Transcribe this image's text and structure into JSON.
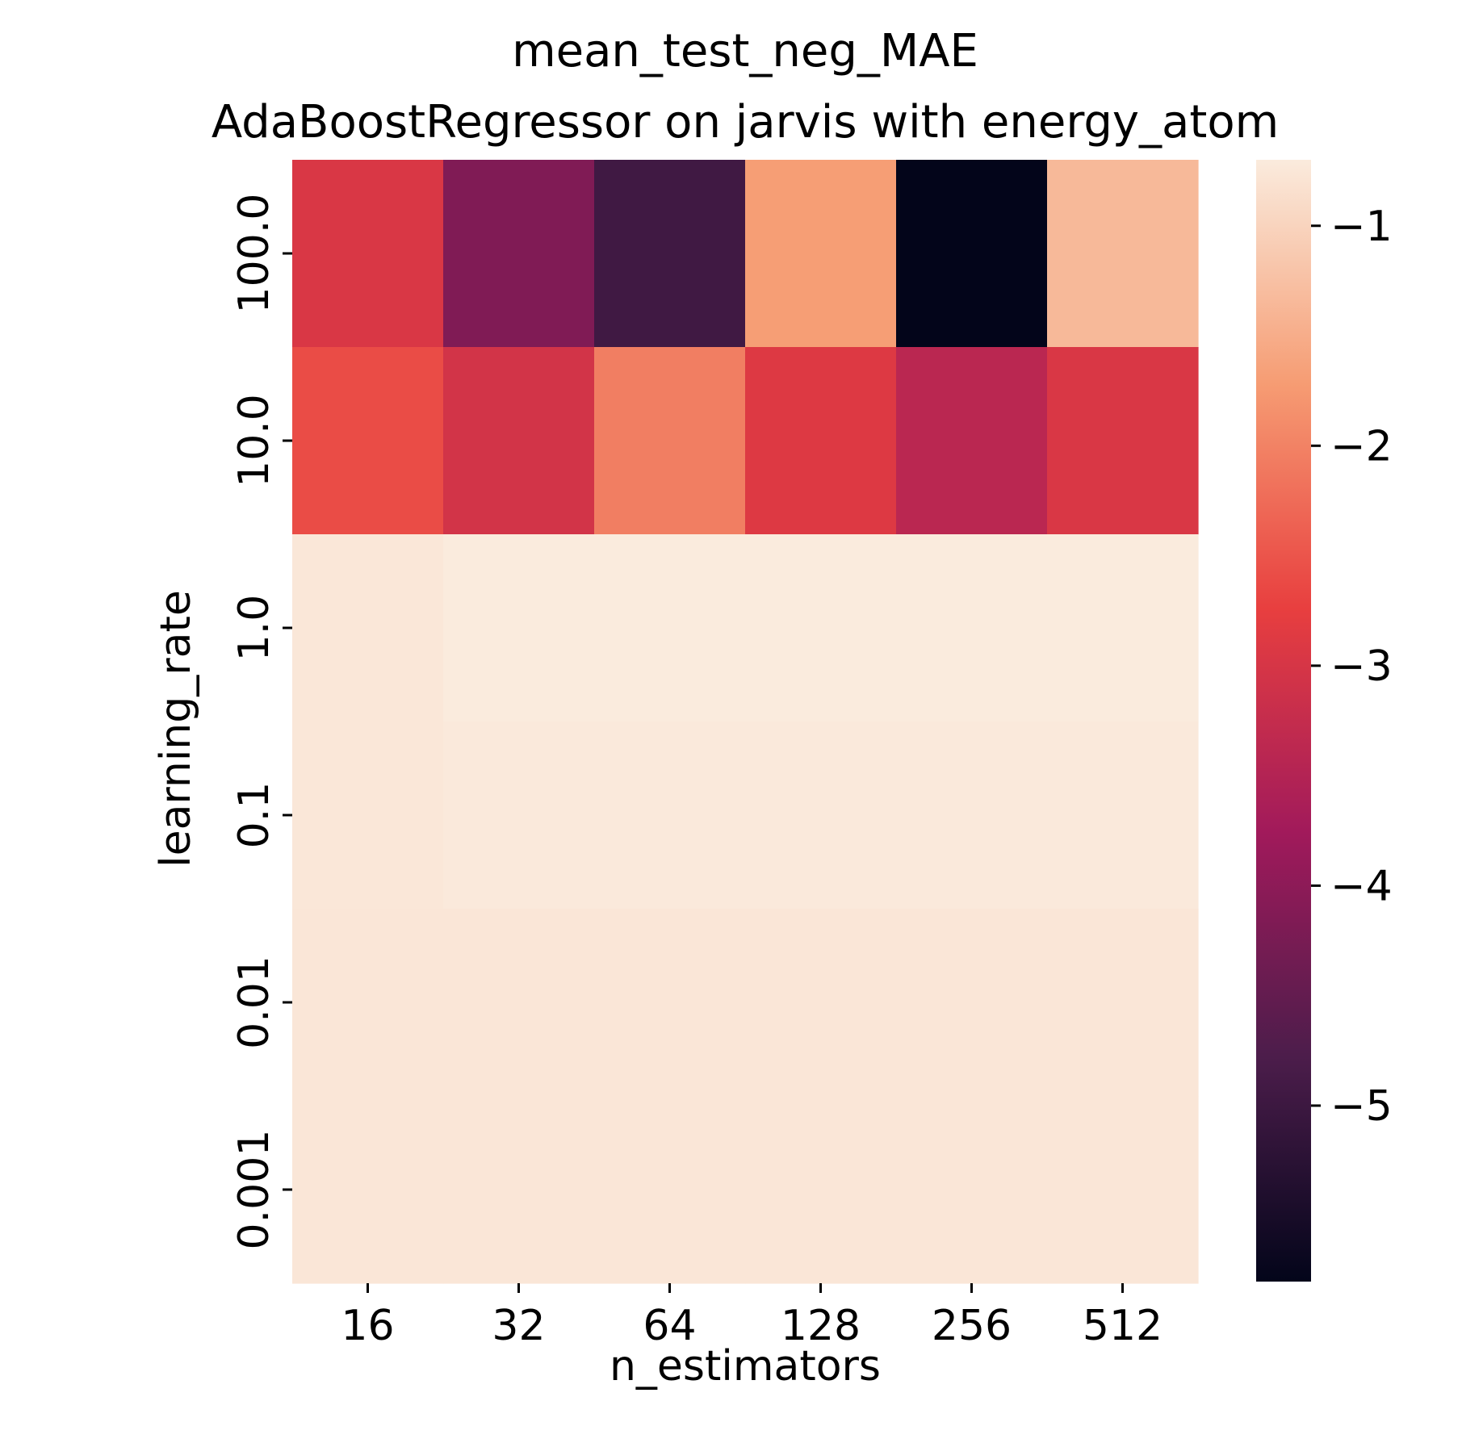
{
  "chart_data": {
    "type": "heatmap",
    "title": "mean_test_neg_MAE",
    "subtitle": "AdaBoostRegressor on jarvis with energy_atom",
    "xlabel": "n_estimators",
    "ylabel": "learning_rate",
    "x_categories": [
      "16",
      "32",
      "64",
      "128",
      "256",
      "512"
    ],
    "y_categories": [
      "100.0",
      "10.0",
      "1.0",
      "0.1",
      "0.01",
      "0.001"
    ],
    "values": [
      [
        -2.95,
        -4.15,
        -4.95,
        -1.7,
        -5.8,
        -1.35
      ],
      [
        -2.6,
        -3.05,
        -2.05,
        -2.9,
        -3.4,
        -2.95
      ],
      [
        -0.75,
        -0.7,
        -0.7,
        -0.7,
        -0.7,
        -0.7
      ],
      [
        -0.75,
        -0.72,
        -0.72,
        -0.72,
        -0.72,
        -0.72
      ],
      [
        -0.76,
        -0.76,
        -0.76,
        -0.76,
        -0.76,
        -0.76
      ],
      [
        -0.76,
        -0.76,
        -0.76,
        -0.76,
        -0.76,
        -0.76
      ]
    ],
    "colorbar": {
      "vmin": -5.8,
      "vmax": -0.7,
      "ticks": [
        "−1",
        "−2",
        "−3",
        "−4",
        "−5"
      ],
      "tick_values": [
        -1,
        -2,
        -3,
        -4,
        -5
      ],
      "colormap": "rocket",
      "colormap_stops": [
        "#03051a",
        "#4c1d4b",
        "#a11a5b",
        "#e83f3f",
        "#f69c73",
        "#faebdd"
      ]
    }
  }
}
